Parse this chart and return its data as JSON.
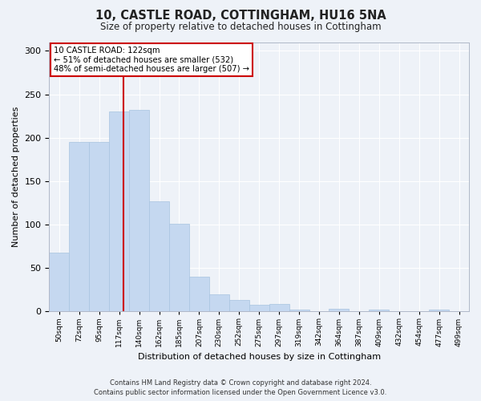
{
  "title": "10, CASTLE ROAD, COTTINGHAM, HU16 5NA",
  "subtitle": "Size of property relative to detached houses in Cottingham",
  "xlabel": "Distribution of detached houses by size in Cottingham",
  "ylabel": "Number of detached properties",
  "categories": [
    "50sqm",
    "72sqm",
    "95sqm",
    "117sqm",
    "140sqm",
    "162sqm",
    "185sqm",
    "207sqm",
    "230sqm",
    "252sqm",
    "275sqm",
    "297sqm",
    "319sqm",
    "342sqm",
    "364sqm",
    "387sqm",
    "409sqm",
    "432sqm",
    "454sqm",
    "477sqm",
    "499sqm"
  ],
  "values": [
    68,
    195,
    195,
    230,
    232,
    127,
    101,
    40,
    20,
    13,
    8,
    9,
    2,
    0,
    3,
    0,
    2,
    0,
    0,
    2,
    0
  ],
  "bar_color": "#c5d8f0",
  "bar_edgecolor": "#a8c4e0",
  "annotation_title": "10 CASTLE ROAD: 122sqm",
  "annotation_line1": "← 51% of detached houses are smaller (532)",
  "annotation_line2": "48% of semi-detached houses are larger (507) →",
  "annotation_box_facecolor": "#ffffff",
  "annotation_box_edgecolor": "#cc0000",
  "marker_line_color": "#cc0000",
  "ylim": [
    0,
    310
  ],
  "yticks": [
    0,
    50,
    100,
    150,
    200,
    250,
    300
  ],
  "background_color": "#eef2f8",
  "grid_color": "#ffffff",
  "footer_line1": "Contains HM Land Registry data © Crown copyright and database right 2024.",
  "footer_line2": "Contains public sector information licensed under the Open Government Licence v3.0."
}
